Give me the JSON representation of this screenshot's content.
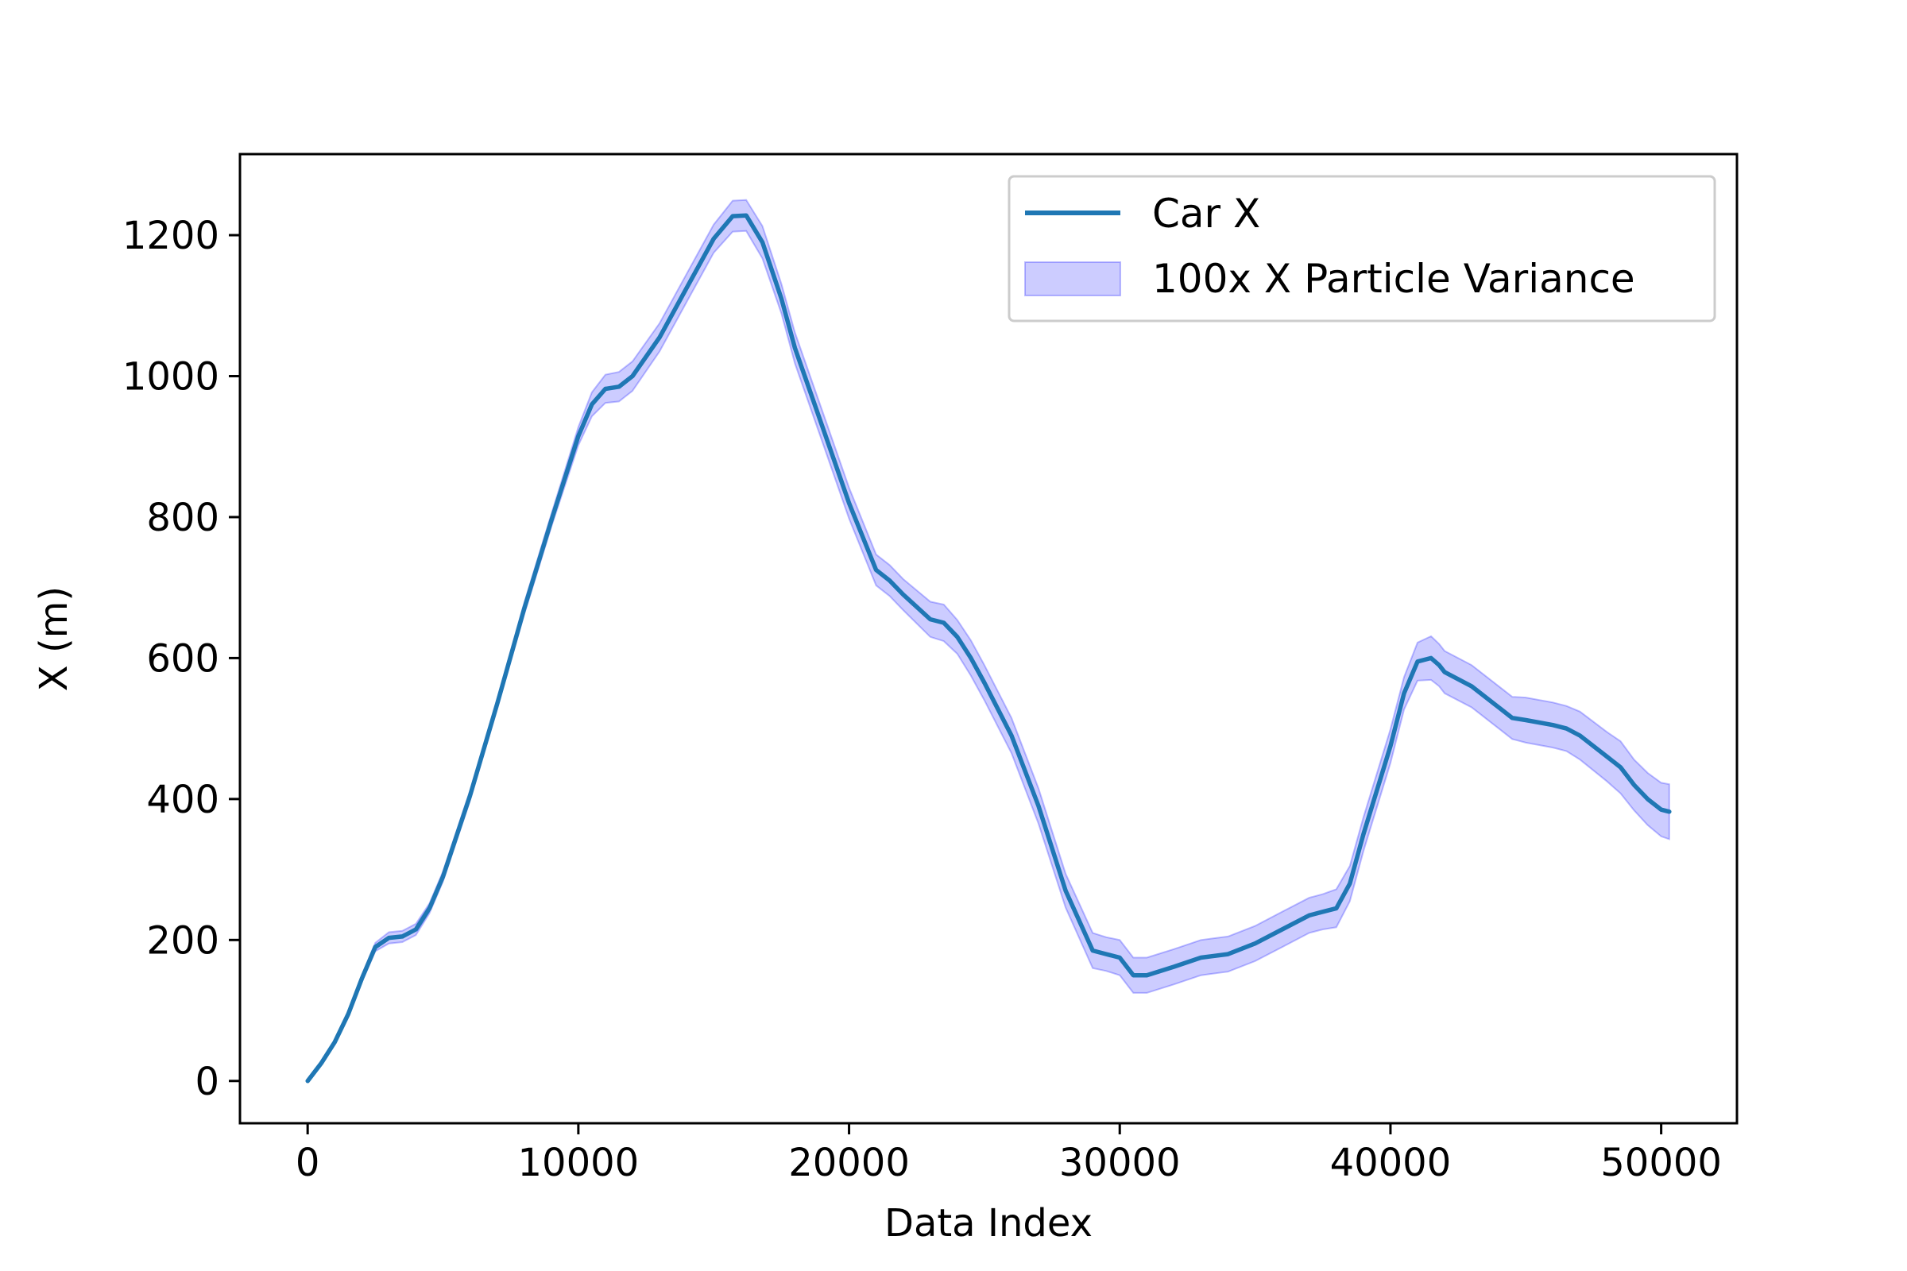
{
  "chart_data": {
    "type": "line",
    "title": "",
    "xlabel": "Data Index",
    "ylabel": "X (m)",
    "xlim": [
      -2500,
      52800
    ],
    "ylim": [
      -60,
      1315
    ],
    "xticks": [
      0,
      10000,
      20000,
      30000,
      40000,
      50000
    ],
    "xtick_labels": [
      "0",
      "10000",
      "20000",
      "30000",
      "40000",
      "50000"
    ],
    "yticks": [
      0,
      200,
      400,
      600,
      800,
      1000,
      1200
    ],
    "ytick_labels": [
      "0",
      "200",
      "400",
      "600",
      "800",
      "1000",
      "1200"
    ],
    "grid": false,
    "legend_position": "upper right",
    "colors": {
      "line": "#1f77b4",
      "band_fill": "#0000ff",
      "band_edge": "#0000ff"
    },
    "series": [
      {
        "name": "Car X",
        "kind": "line",
        "x": [
          0,
          500,
          1000,
          1500,
          2000,
          2500,
          3000,
          3500,
          4000,
          4500,
          5000,
          6000,
          7000,
          8000,
          9000,
          10000,
          10500,
          11000,
          11500,
          12000,
          13000,
          14000,
          15000,
          15700,
          16200,
          16800,
          17500,
          18000,
          19000,
          20000,
          21000,
          21500,
          22000,
          23000,
          23500,
          24000,
          24500,
          25000,
          26000,
          27000,
          28000,
          29000,
          29500,
          30000,
          30500,
          31000,
          32000,
          33000,
          34000,
          35000,
          36000,
          37000,
          37500,
          38000,
          38500,
          39000,
          40000,
          40500,
          41000,
          41500,
          41800,
          42000,
          43000,
          44000,
          44500,
          45000,
          46000,
          46500,
          47000,
          48000,
          48500,
          49000,
          49500,
          50000,
          50300
        ],
        "y": [
          0,
          25,
          55,
          95,
          145,
          190,
          203,
          205,
          215,
          245,
          290,
          405,
          535,
          670,
          795,
          915,
          960,
          982,
          985,
          1000,
          1055,
          1125,
          1195,
          1227,
          1228,
          1190,
          1110,
          1040,
          930,
          820,
          725,
          710,
          690,
          655,
          650,
          630,
          600,
          565,
          490,
          390,
          270,
          185,
          180,
          175,
          150,
          150,
          162,
          175,
          180,
          195,
          215,
          235,
          240,
          245,
          280,
          350,
          475,
          550,
          595,
          600,
          590,
          580,
          560,
          530,
          515,
          512,
          505,
          500,
          490,
          460,
          445,
          420,
          400,
          385,
          382
        ]
      },
      {
        "name": "100x X Particle Variance",
        "kind": "band",
        "x": [
          0,
          500,
          1000,
          1500,
          2000,
          2500,
          3000,
          3500,
          4000,
          4500,
          5000,
          6000,
          7000,
          8000,
          9000,
          10000,
          10500,
          11000,
          11500,
          12000,
          13000,
          14000,
          15000,
          15700,
          16200,
          16800,
          17500,
          18000,
          19000,
          20000,
          21000,
          21500,
          22000,
          23000,
          23500,
          24000,
          24500,
          25000,
          26000,
          27000,
          28000,
          29000,
          29500,
          30000,
          30500,
          31000,
          32000,
          33000,
          34000,
          35000,
          36000,
          37000,
          37500,
          38000,
          38500,
          39000,
          40000,
          40500,
          41000,
          41500,
          41800,
          42000,
          43000,
          44000,
          44500,
          45000,
          46000,
          46500,
          47000,
          48000,
          48500,
          49000,
          49500,
          50000,
          50300
        ],
        "lower": [
          0,
          23,
          52,
          91,
          140,
          184,
          195,
          197,
          207,
          238,
          283,
          398,
          528,
          662,
          786,
          902,
          943,
          962,
          964,
          979,
          1035,
          1105,
          1175,
          1205,
          1206,
          1167,
          1089,
          1018,
          908,
          798,
          703,
          688,
          668,
          630,
          624,
          606,
          575,
          540,
          465,
          365,
          246,
          160,
          156,
          150,
          125,
          125,
          137,
          150,
          155,
          170,
          190,
          210,
          215,
          218,
          255,
          326,
          451,
          527,
          568,
          569,
          560,
          550,
          530,
          500,
          485,
          480,
          473,
          468,
          456,
          425,
          408,
          384,
          363,
          347,
          343
        ],
        "upper": [
          0,
          27,
          58,
          99,
          150,
          196,
          211,
          213,
          223,
          252,
          297,
          412,
          542,
          678,
          804,
          928,
          977,
          1002,
          1006,
          1021,
          1075,
          1145,
          1215,
          1249,
          1250,
          1213,
          1131,
          1062,
          952,
          842,
          747,
          732,
          712,
          680,
          676,
          654,
          625,
          590,
          515,
          415,
          294,
          210,
          204,
          200,
          175,
          175,
          187,
          200,
          205,
          220,
          240,
          260,
          265,
          272,
          305,
          374,
          499,
          573,
          622,
          631,
          620,
          610,
          590,
          560,
          545,
          544,
          537,
          532,
          524,
          495,
          482,
          456,
          437,
          423,
          421
        ]
      }
    ]
  }
}
